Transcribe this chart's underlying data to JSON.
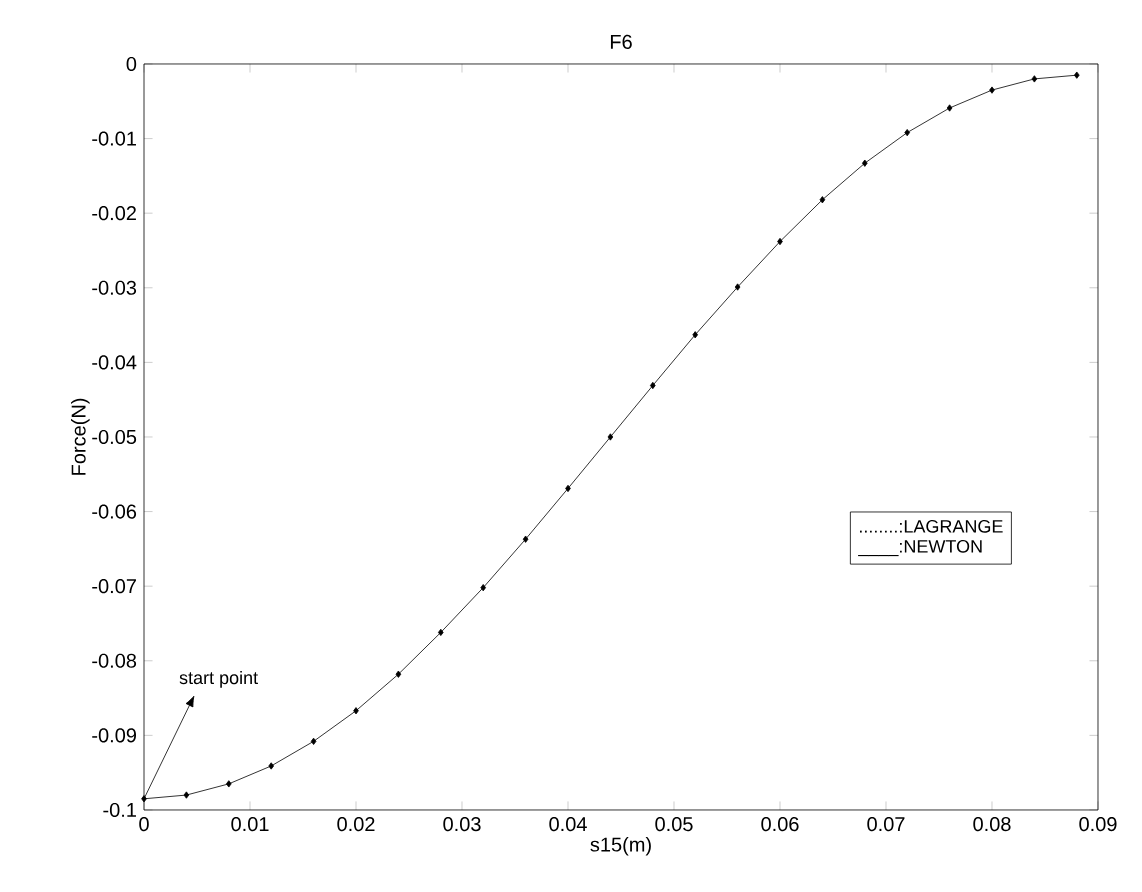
{
  "chart_data": {
    "type": "line",
    "title": "F6",
    "xlabel": "s15(m)",
    "ylabel": "Force(N)",
    "x": [
      0,
      0.004,
      0.008,
      0.012,
      0.016,
      0.02,
      0.024,
      0.028,
      0.032,
      0.036,
      0.04,
      0.044,
      0.048,
      0.052,
      0.056,
      0.06,
      0.064,
      0.068,
      0.072,
      0.076,
      0.08,
      0.084,
      0.088
    ],
    "series": [
      {
        "color": "#000000",
        "values": [
          -0.0985,
          -0.098,
          -0.0965,
          -0.0941,
          -0.0908,
          -0.0867,
          -0.0818,
          -0.0762,
          -0.0702,
          -0.0637,
          -0.0569,
          -0.05,
          -0.0431,
          -0.0363,
          -0.0299,
          -0.0238,
          -0.0182,
          -0.0133,
          -0.0092,
          -0.0059,
          -0.0035,
          -0.002,
          -0.0015
        ]
      }
    ],
    "marker": "diamond",
    "xlim": [
      0,
      0.09
    ],
    "ylim": [
      -0.1,
      0
    ],
    "xticks": [
      0,
      0.01,
      0.02,
      0.03,
      0.04,
      0.05,
      0.06,
      0.07,
      0.08,
      0.09
    ],
    "yticks": [
      -0.1,
      -0.09,
      -0.08,
      -0.07,
      -0.06,
      -0.05,
      -0.04,
      -0.03,
      -0.02,
      -0.01,
      0
    ],
    "annotations": [
      {
        "text": "start point",
        "x": 0,
        "y": -0.0985
      },
      "........:LAGRANGE",
      "____:NEWTON"
    ]
  }
}
